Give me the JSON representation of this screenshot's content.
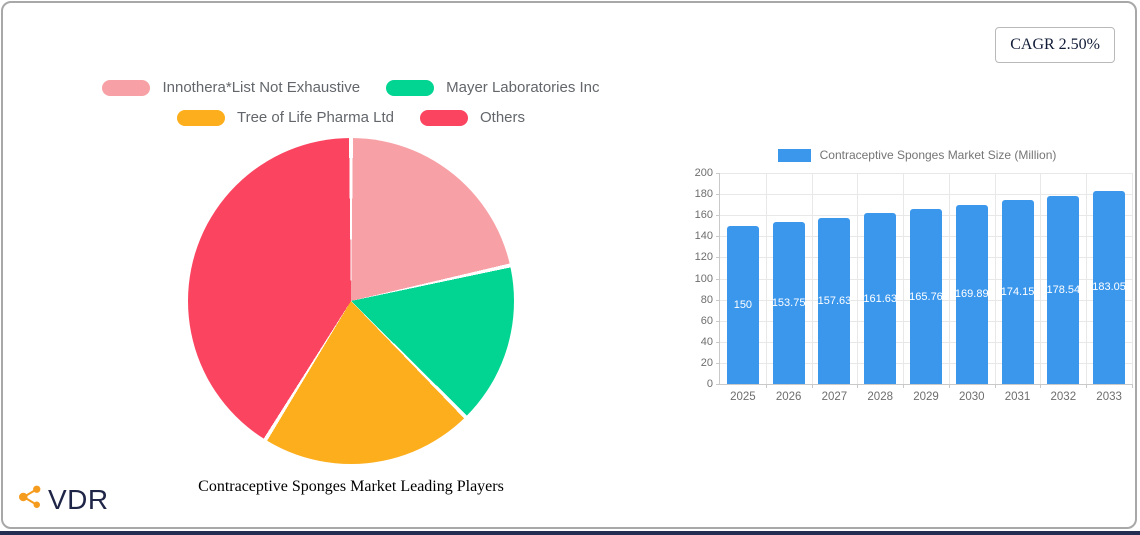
{
  "badge": {
    "label": "CAGR 2.50%"
  },
  "logo": {
    "brand": "VDR",
    "icon": "share-network-icon",
    "icon_color": "#f59b1e",
    "text_color": "#1e2546"
  },
  "chart_data": [
    {
      "type": "pie",
      "title": "Contraceptive Sponges Market Leading Players",
      "legend_position": "top",
      "start_angle_deg": 0,
      "slices": [
        {
          "label": "Innothera*List Not Exhaustive",
          "value": 21.5,
          "color": "#f7a1a6"
        },
        {
          "label": "Mayer Laboratories Inc",
          "value": 16.1,
          "color": "#02d492"
        },
        {
          "label": "Tree of Life Pharma Ltd",
          "value": 21.2,
          "color": "#fcae1c"
        },
        {
          "label": "Others",
          "value": 41.2,
          "color": "#fb4460"
        }
      ]
    },
    {
      "type": "bar",
      "series_label": "Contraceptive Sponges Market Size (Million)",
      "bar_color": "#3b97ec",
      "categories": [
        "2025",
        "2026",
        "2027",
        "2028",
        "2029",
        "2030",
        "2031",
        "2032",
        "2033"
      ],
      "values": [
        150,
        153.75,
        157.63,
        161.63,
        165.76,
        169.89,
        174.15,
        178.54,
        183.05
      ],
      "value_labels": [
        "150",
        "153.75",
        "157.63",
        "161.63",
        "165.76",
        "169.89",
        "174.15",
        "178.54",
        "183.05"
      ],
      "ylim": [
        0,
        200
      ],
      "yticks": [
        0,
        20,
        40,
        60,
        80,
        100,
        120,
        140,
        160,
        180,
        200
      ],
      "grid": true,
      "legend_position": "top"
    }
  ]
}
